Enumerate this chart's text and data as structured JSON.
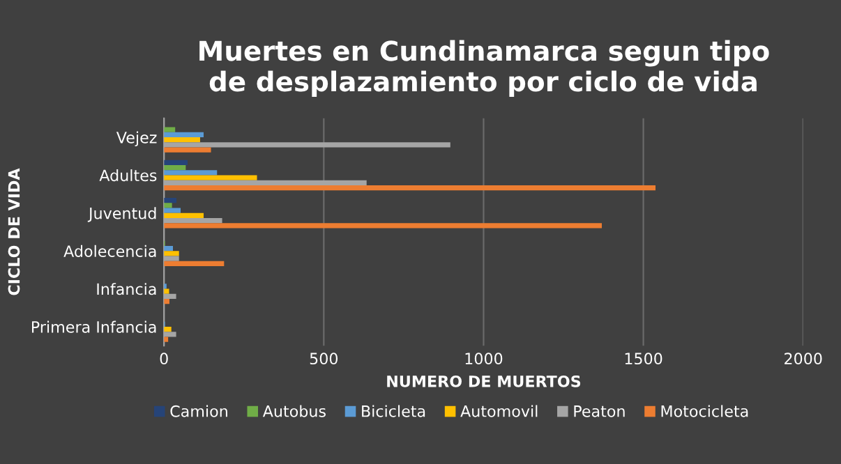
{
  "chart_data": {
    "type": "bar",
    "orientation": "horizontal",
    "title": "Muertes en Cundinamarca segun tipo\nde desplazamiento por ciclo de vida",
    "xlabel": "NUMERO DE MUERTOS",
    "ylabel": "CICLO DE VIDA",
    "categories": [
      "Vejez",
      "Adultes",
      "Juventud",
      "Adolecencia",
      "Infancia",
      "Primera Infancia"
    ],
    "series": [
      {
        "name": "Camion",
        "color": "#264478",
        "values": [
          null,
          74,
          39,
          null,
          0,
          0
        ]
      },
      {
        "name": "Autobus",
        "color": "#70ad47",
        "values": [
          35,
          68,
          25,
          3,
          0,
          0
        ]
      },
      {
        "name": "Bicicleta",
        "color": "#5b9bd5",
        "values": [
          124,
          166,
          52,
          28,
          8,
          3
        ]
      },
      {
        "name": "Automovil",
        "color": "#ffc000",
        "values": [
          113,
          291,
          124,
          47,
          16,
          23
        ]
      },
      {
        "name": "Peaton",
        "color": "#a5a5a5",
        "values": [
          896,
          634,
          182,
          47,
          38,
          38
        ]
      },
      {
        "name": "Motocicleta",
        "color": "#ed7d31",
        "values": [
          147,
          1538,
          1370,
          188,
          17,
          13
        ]
      }
    ],
    "xlim": [
      0,
      2000
    ],
    "xticks": [
      0,
      500,
      1000,
      1500,
      2000
    ],
    "grid": "x",
    "legend": "bottom"
  }
}
